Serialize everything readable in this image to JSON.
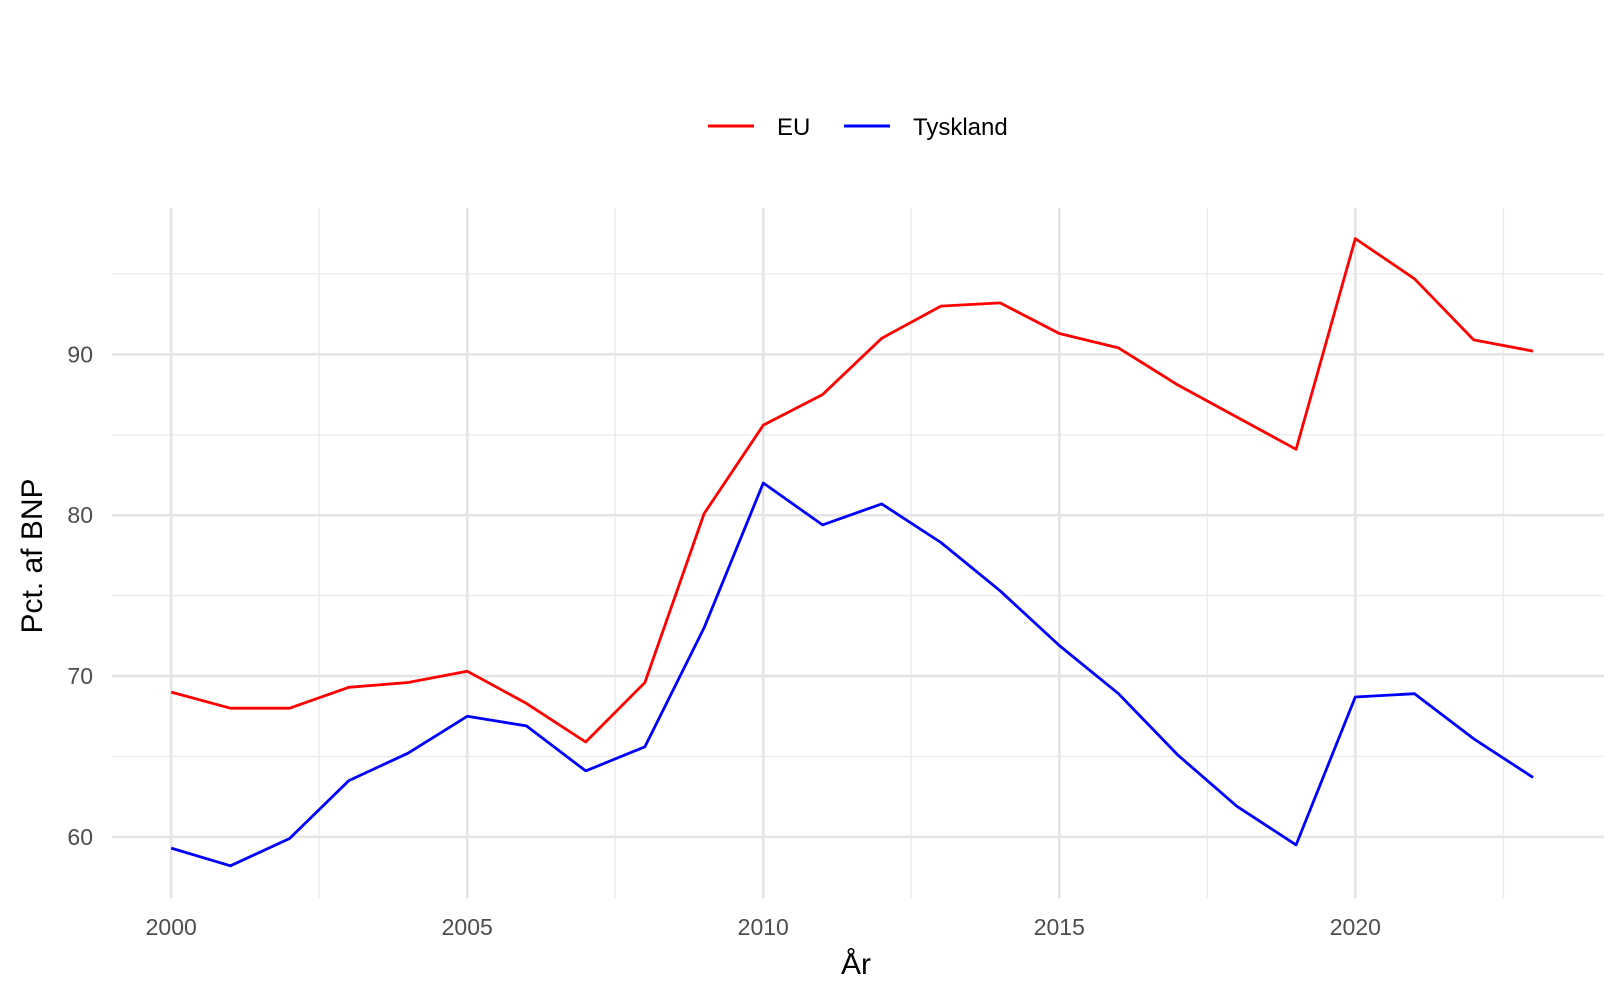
{
  "chart_data": {
    "type": "line",
    "title": "",
    "xlabel": "År",
    "ylabel": "Pct. af BNP",
    "x": [
      2000,
      2001,
      2002,
      2003,
      2004,
      2005,
      2006,
      2007,
      2008,
      2009,
      2010,
      2011,
      2012,
      2013,
      2014,
      2015,
      2016,
      2017,
      2018,
      2019,
      2020,
      2021,
      2022,
      2023
    ],
    "series": [
      {
        "name": "EU",
        "color": "#ff0000",
        "values": [
          69.0,
          68.0,
          68.0,
          69.3,
          69.6,
          70.3,
          68.3,
          65.9,
          69.6,
          80.1,
          85.6,
          87.5,
          91.0,
          93.0,
          93.2,
          91.3,
          90.4,
          88.1,
          86.1,
          84.1,
          97.2,
          94.7,
          90.9,
          90.2
        ]
      },
      {
        "name": "Tyskland",
        "color": "#0000ff",
        "values": [
          59.3,
          58.2,
          59.9,
          63.5,
          65.2,
          67.5,
          66.9,
          64.1,
          65.6,
          73.0,
          82.0,
          79.4,
          80.7,
          78.3,
          75.3,
          71.9,
          68.9,
          65.1,
          61.9,
          59.5,
          68.7,
          68.9,
          66.1,
          63.7
        ]
      }
    ],
    "xlim": [
      1999.0,
      2024.2
    ],
    "ylim": [
      56.2,
      99.1
    ],
    "x_ticks": [
      2000,
      2005,
      2010,
      2015,
      2020
    ],
    "x_tick_labels": [
      "2000",
      "2005",
      "2010",
      "2015",
      "2020"
    ],
    "y_ticks": [
      60,
      70,
      80,
      90
    ],
    "y_tick_labels": [
      "60",
      "70",
      "80",
      "90"
    ],
    "grid": true,
    "legend_position": "top"
  }
}
